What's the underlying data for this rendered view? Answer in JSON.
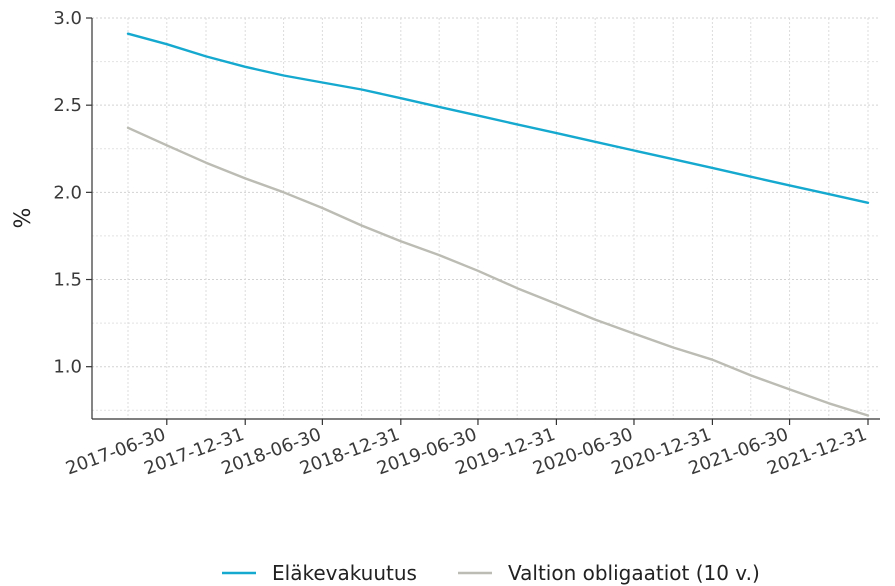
{
  "chart_data": {
    "type": "line",
    "title": "",
    "xlabel": "",
    "ylabel": "%",
    "ylim": [
      0.7,
      3.0
    ],
    "yticks": [
      "1.0",
      "1.5",
      "2.0",
      "2.5",
      "3.0"
    ],
    "grid": true,
    "legend_position": "bottom",
    "x": [
      "2017-03-31",
      "2017-06-30",
      "2017-09-30",
      "2017-12-31",
      "2018-03-31",
      "2018-06-30",
      "2018-09-30",
      "2018-12-31",
      "2019-03-31",
      "2019-06-30",
      "2019-09-30",
      "2019-12-31",
      "2020-03-31",
      "2020-06-30",
      "2020-09-30",
      "2020-12-31",
      "2021-03-31",
      "2021-06-30",
      "2021-09-30",
      "2021-12-31"
    ],
    "xticks": [
      "2017-06-30",
      "2017-12-31",
      "2018-06-30",
      "2018-12-31",
      "2019-06-30",
      "2019-12-31",
      "2020-06-30",
      "2020-12-31",
      "2021-06-30",
      "2021-12-31"
    ],
    "series": [
      {
        "name": "Eläkevakuutus",
        "color": "#16a9cf",
        "values": [
          2.91,
          2.85,
          2.78,
          2.72,
          2.67,
          2.63,
          2.59,
          2.54,
          2.49,
          2.44,
          2.39,
          2.34,
          2.29,
          2.24,
          2.19,
          2.14,
          2.09,
          2.04,
          1.99,
          1.94
        ]
      },
      {
        "name": "Valtion obligaatiot (10 v.)",
        "color": "#bcbcb4",
        "values": [
          2.37,
          2.27,
          2.17,
          2.08,
          2.0,
          1.91,
          1.81,
          1.72,
          1.64,
          1.55,
          1.45,
          1.36,
          1.27,
          1.19,
          1.11,
          1.04,
          0.95,
          0.87,
          0.79,
          0.72
        ]
      }
    ]
  }
}
